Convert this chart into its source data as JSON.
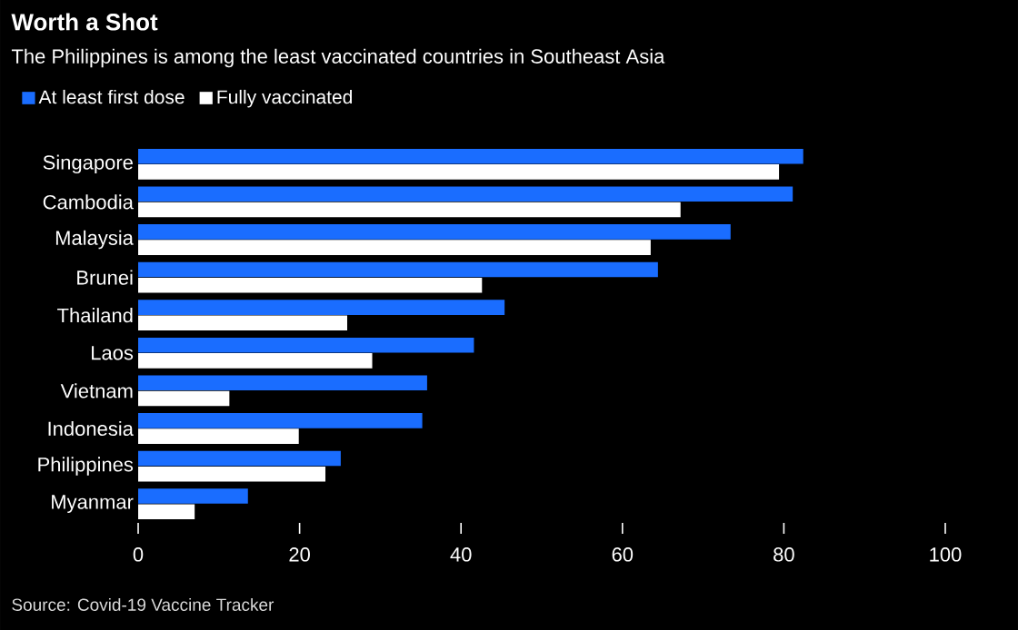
{
  "chart_data": {
    "type": "bar",
    "orientation": "horizontal",
    "title": "Worth a Shot",
    "subtitle": "The Philippines is among the least vaccinated countries in Southeast Asia",
    "categories": [
      "Singapore",
      "Cambodia",
      "Malaysia",
      "Brunei",
      "Thailand",
      "Laos",
      "Vietnam",
      "Indonesia",
      "Philippines",
      "Myanmar"
    ],
    "series": [
      {
        "name": "At least first dose",
        "color": "#1a6dff",
        "values": [
          82.4,
          81.1,
          73.4,
          64.4,
          45.4,
          41.6,
          35.8,
          35.2,
          25.1,
          13.6
        ]
      },
      {
        "name": "Fully vaccinated",
        "color": "#ffffff",
        "values": [
          79.4,
          67.2,
          63.5,
          42.6,
          25.9,
          29.0,
          11.3,
          19.9,
          23.2,
          7.0
        ]
      }
    ],
    "xlim": [
      0,
      100
    ],
    "xticks": [
      0,
      20,
      40,
      60,
      80,
      100
    ],
    "legend": "top left",
    "annotations": [
      "Source: Covid-19 Vaccine Tracker"
    ]
  }
}
